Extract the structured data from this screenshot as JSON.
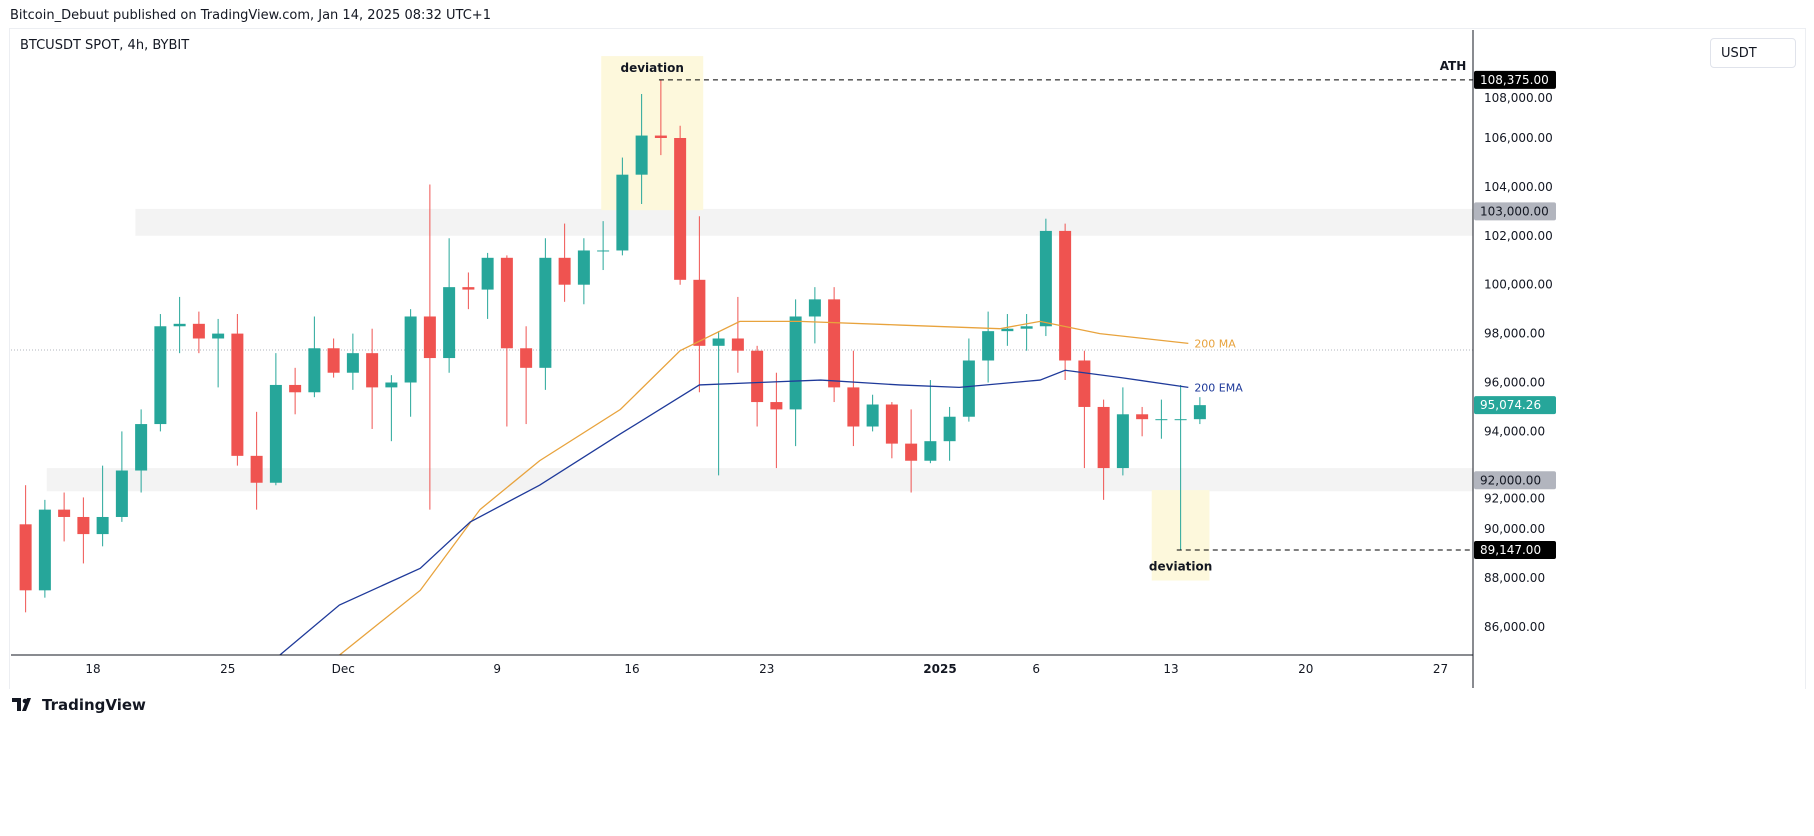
{
  "header": "Bitcoin_Debuut published on TradingView.com, Jan 14, 2025 08:32 UTC+1",
  "symbol": "BTCUSDT SPOT, 4h, BYBIT",
  "currency": "USDT",
  "footer": "TradingView",
  "colors": {
    "up": "#26a69a",
    "down": "#ef5350",
    "ma": "#e8a33d",
    "ema": "#1f3a9a",
    "zone": "#f3f3f3",
    "deviation": "#fdf8dc"
  },
  "chart_data": {
    "type": "candlestick",
    "title": "BTCUSDT SPOT, 4h, BYBIT",
    "ylim": [
      84800,
      110400
    ],
    "y_ticks": [
      86000,
      88000,
      90000,
      92000,
      94000,
      96000,
      98000,
      100000,
      102000,
      104000,
      106000,
      108000
    ],
    "y_tick_labels": [
      "86,000.00",
      "88,000.00",
      "90,000.00",
      "92,000.00",
      "94,000.00",
      "96,000.00",
      "98,000.00",
      "100,000.00",
      "102,000.00",
      "104,000.00",
      "106,000.00",
      "108,000.00"
    ],
    "x_unit": "days since Nov 18",
    "x_ticks": [
      {
        "d": 0,
        "label": "18"
      },
      {
        "d": 7,
        "label": "25"
      },
      {
        "d": 13,
        "label": "Dec"
      },
      {
        "d": 21,
        "label": "9"
      },
      {
        "d": 28,
        "label": "16"
      },
      {
        "d": 35,
        "label": "23"
      },
      {
        "d": 44,
        "label": "2025",
        "bold": true
      },
      {
        "d": 49,
        "label": "6"
      },
      {
        "d": 56,
        "label": "13"
      },
      {
        "d": 63,
        "label": "20"
      },
      {
        "d": 70,
        "label": "27"
      }
    ],
    "candles_start_day": -4,
    "candles_ohlc_daily": [
      [
        90.2,
        91.8,
        86.6,
        87.5
      ],
      [
        87.5,
        91.2,
        87.2,
        90.8
      ],
      [
        90.8,
        91.5,
        89.5,
        90.5
      ],
      [
        90.5,
        91.3,
        88.6,
        89.8
      ],
      [
        89.8,
        92.6,
        89.3,
        90.5
      ],
      [
        90.5,
        94.0,
        90.3,
        92.4
      ],
      [
        92.4,
        94.9,
        91.5,
        94.3
      ],
      [
        94.3,
        98.8,
        94.0,
        98.3
      ],
      [
        98.3,
        99.5,
        97.2,
        98.4
      ],
      [
        98.4,
        98.9,
        97.2,
        97.8
      ],
      [
        97.8,
        98.6,
        95.8,
        98.0
      ],
      [
        98.0,
        98.8,
        92.6,
        93.0
      ],
      [
        93.0,
        94.8,
        90.8,
        91.9
      ],
      [
        91.9,
        97.2,
        91.8,
        95.9
      ],
      [
        95.9,
        96.6,
        94.7,
        95.6
      ],
      [
        95.6,
        98.7,
        95.4,
        97.4
      ],
      [
        97.4,
        97.8,
        96.2,
        96.4
      ],
      [
        96.4,
        98.0,
        95.7,
        97.2
      ],
      [
        97.2,
        98.2,
        94.1,
        95.8
      ],
      [
        95.8,
        96.3,
        93.6,
        96.0
      ],
      [
        96.0,
        99.0,
        94.6,
        98.7
      ],
      [
        98.7,
        104.1,
        90.8,
        97.0
      ],
      [
        97.0,
        101.9,
        96.4,
        99.9
      ],
      [
        99.9,
        100.5,
        99.0,
        99.8
      ],
      [
        99.8,
        101.3,
        98.6,
        101.1
      ],
      [
        101.1,
        101.2,
        94.2,
        97.4
      ],
      [
        97.4,
        98.3,
        94.3,
        96.6
      ],
      [
        96.6,
        101.9,
        95.7,
        101.1
      ],
      [
        101.1,
        102.5,
        99.3,
        100.0
      ],
      [
        100.0,
        101.9,
        99.2,
        101.4
      ],
      [
        101.4,
        102.6,
        100.6,
        101.4
      ],
      [
        101.4,
        105.2,
        101.2,
        104.5
      ],
      [
        104.5,
        107.8,
        103.3,
        106.1
      ],
      [
        106.1,
        108.375,
        105.3,
        106.0
      ],
      [
        106.0,
        106.5,
        100.0,
        100.2
      ],
      [
        100.2,
        102.8,
        95.6,
        97.5
      ],
      [
        97.5,
        98.1,
        92.2,
        97.8
      ],
      [
        97.8,
        99.5,
        96.4,
        97.3
      ],
      [
        97.3,
        97.5,
        94.2,
        95.2
      ],
      [
        95.2,
        96.4,
        92.5,
        94.9
      ],
      [
        94.9,
        99.4,
        93.4,
        98.7
      ],
      [
        98.7,
        99.9,
        97.6,
        99.4
      ],
      [
        99.4,
        99.9,
        95.2,
        95.8
      ],
      [
        95.8,
        97.3,
        93.4,
        94.2
      ],
      [
        94.2,
        95.5,
        94.0,
        95.1
      ],
      [
        95.1,
        95.2,
        92.9,
        93.5
      ],
      [
        93.5,
        94.9,
        91.5,
        92.8
      ],
      [
        92.8,
        96.1,
        92.7,
        93.6
      ],
      [
        93.6,
        95.0,
        92.8,
        94.6
      ],
      [
        94.6,
        97.8,
        94.4,
        96.9
      ],
      [
        96.9,
        98.9,
        96.0,
        98.1
      ],
      [
        98.1,
        98.8,
        97.5,
        98.2
      ],
      [
        98.2,
        98.8,
        97.3,
        98.3
      ],
      [
        98.3,
        102.7,
        97.9,
        102.2
      ],
      [
        102.2,
        102.5,
        96.1,
        96.9
      ],
      [
        96.9,
        97.3,
        92.5,
        95.0
      ],
      [
        95.0,
        95.3,
        91.2,
        92.5
      ],
      [
        92.5,
        95.8,
        92.2,
        94.7
      ],
      [
        94.7,
        95.0,
        93.8,
        94.5
      ],
      [
        94.5,
        95.3,
        93.7,
        94.5
      ],
      [
        94.5,
        95.9,
        89.147,
        94.5
      ],
      [
        94.5,
        95.4,
        94.3,
        95.074
      ]
    ],
    "series": [
      {
        "name": "200 MA",
        "label": "200 MA",
        "points": [
          [
            12.8,
            84.85
          ],
          [
            17,
            87.5
          ],
          [
            20.1,
            90.8
          ],
          [
            23.2,
            92.8
          ],
          [
            27.4,
            94.9
          ],
          [
            30.5,
            97.3
          ],
          [
            33.6,
            98.5
          ],
          [
            36.7,
            98.5
          ],
          [
            41.9,
            98.35
          ],
          [
            47.1,
            98.2
          ],
          [
            49.2,
            98.5
          ],
          [
            52.3,
            98.0
          ],
          [
            56.9,
            97.6
          ]
        ]
      },
      {
        "name": "200 EMA",
        "label": "200 EMA",
        "points": [
          [
            9.7,
            84.85
          ],
          [
            12.8,
            86.9
          ],
          [
            17,
            88.4
          ],
          [
            19.6,
            90.3
          ],
          [
            23.2,
            91.8
          ],
          [
            27.4,
            93.9
          ],
          [
            31.5,
            95.9
          ],
          [
            34.6,
            96.0
          ],
          [
            37.8,
            96.1
          ],
          [
            41.9,
            95.9
          ],
          [
            45,
            95.8
          ],
          [
            49.2,
            96.1
          ],
          [
            50.5,
            96.5
          ],
          [
            53.4,
            96.2
          ],
          [
            56.9,
            95.8
          ]
        ]
      }
    ],
    "zones": [
      {
        "from_day": 2.2,
        "low": 102.0,
        "high": 103.1
      },
      {
        "from_day": -2.4,
        "low": 91.55,
        "high": 92.5
      }
    ],
    "annotations": [
      {
        "text": "deviation",
        "box": {
          "d0": 26.4,
          "d1": 31.7,
          "low": 103.05,
          "high": 109.35
        },
        "text_pos": "top"
      },
      {
        "text": "deviation",
        "box": {
          "d0": 55,
          "d1": 58,
          "low": 87.9,
          "high": 91.6
        },
        "text_pos": "bottom"
      },
      {
        "text": "ATH",
        "level": 108.375,
        "from_day": 29.4
      }
    ],
    "reference_line": 97.33,
    "price_tags": [
      {
        "value": "108,375.00",
        "level": 108.375,
        "style": "black"
      },
      {
        "value": "103,000.00",
        "level": 103.0,
        "style": "gray"
      },
      {
        "value": "95,074.26",
        "level": 95.074,
        "style": "green"
      },
      {
        "value": "92,000.00",
        "level": 92.0,
        "style": "gray"
      },
      {
        "value": "89,147.00",
        "level": 89.147,
        "style": "black"
      }
    ],
    "low_line": {
      "level": 89.147,
      "from_day": 56.3
    }
  }
}
